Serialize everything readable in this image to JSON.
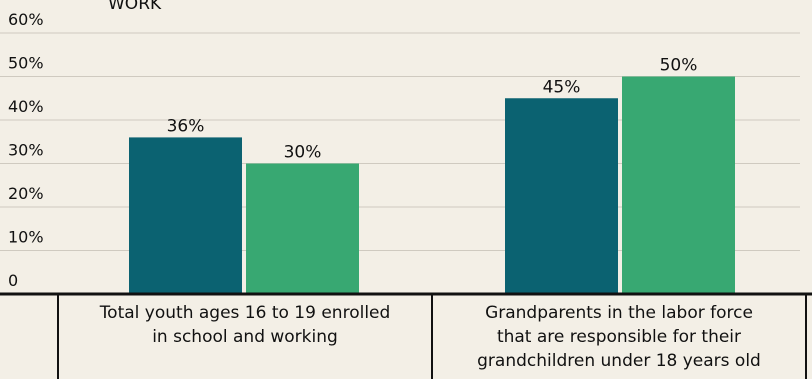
{
  "chart_data": {
    "type": "bar",
    "title_fragment": "WORK",
    "categories": [
      [
        "Total youth ages 16 to 19 enrolled",
        "in school and working"
      ],
      [
        "Grandparents in the labor force",
        "that are responsible for their",
        "grandchildren under 18 years old"
      ]
    ],
    "series": [
      {
        "values": [
          36,
          45
        ],
        "data_labels": [
          "36%",
          "45%"
        ]
      },
      {
        "values": [
          30,
          50
        ],
        "data_labels": [
          "30%",
          "50%"
        ]
      }
    ],
    "y_ticks": [
      "0",
      "10%",
      "20%",
      "30%",
      "40%",
      "50%",
      "60%"
    ],
    "ylim": [
      0,
      60
    ],
    "grid": true,
    "colors": [
      "#0b6271",
      "#38a872"
    ]
  }
}
